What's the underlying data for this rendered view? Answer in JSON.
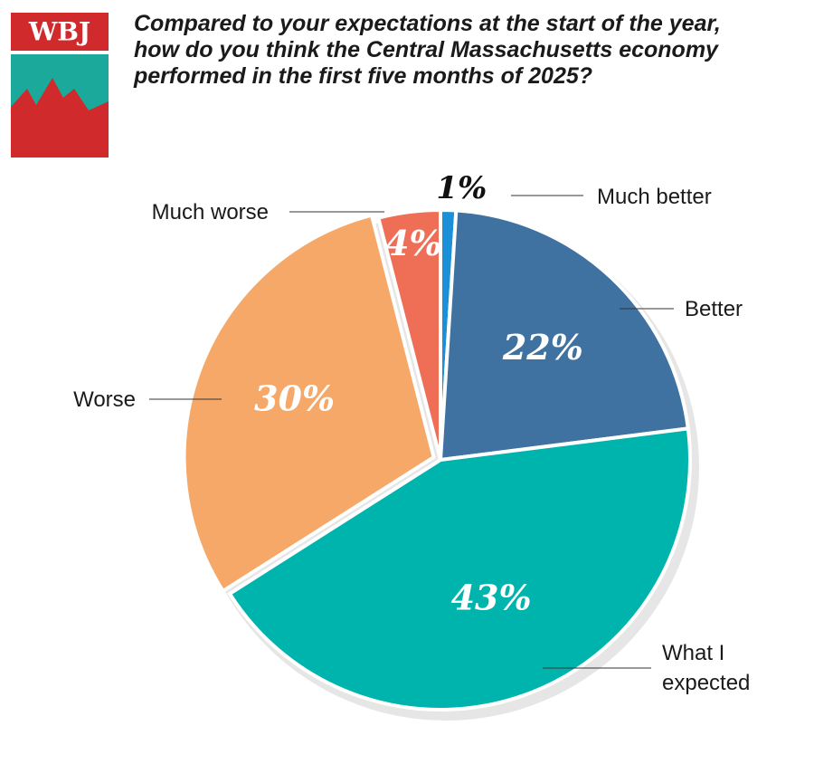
{
  "logo": "WBJ",
  "chart_data": {
    "type": "pie",
    "title": "Compared to your expectations at the start of the year, how do you think the Central Massachusetts economy performed in the first five months of 2025?",
    "categories": [
      "Much better",
      "Better",
      "What I expected",
      "Worse",
      "Much worse"
    ],
    "values": [
      1,
      22,
      43,
      30,
      4
    ],
    "value_labels": [
      "1%",
      "22%",
      "43%",
      "30%",
      "4%"
    ],
    "colors": [
      "#1b8fd8",
      "#3f72a0",
      "#00b4ae",
      "#f6a868",
      "#ee6e56"
    ]
  }
}
